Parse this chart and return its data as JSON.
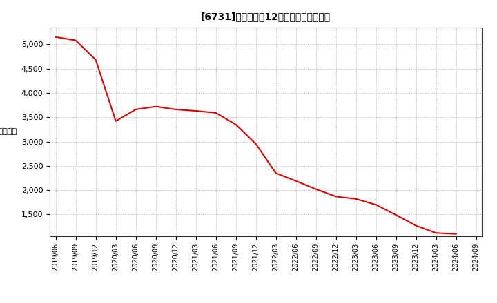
{
  "title": "[6731]　売上高の12か月移動合計の推移",
  "line_color": "#dd0000",
  "bg_color": "#ffffff",
  "plot_bg_color": "#ffffff",
  "grid_color": "#aaaaaa",
  "dates": [
    "2019/06",
    "2019/09",
    "2019/12",
    "2020/03",
    "2020/06",
    "2020/09",
    "2020/12",
    "2021/03",
    "2021/06",
    "2021/09",
    "2021/12",
    "2022/03",
    "2022/06",
    "2022/09",
    "2022/12",
    "2023/03",
    "2023/06",
    "2023/09",
    "2023/12",
    "2024/03",
    "2024/06",
    "2024/09"
  ],
  "values": [
    5150,
    5080,
    4680,
    3420,
    3660,
    3720,
    3660,
    3630,
    3590,
    3350,
    2950,
    2350,
    2190,
    2020,
    1870,
    1820,
    1700,
    1490,
    1270,
    1120,
    1100,
    null
  ],
  "yticks": [
    1500,
    2000,
    2500,
    3000,
    3500,
    4000,
    4500,
    5000
  ],
  "ylim": [
    1050,
    5350
  ],
  "xtick_labels": [
    "2019/06",
    "2019/09",
    "2019/12",
    "2020/03",
    "2020/06",
    "2020/09",
    "2020/12",
    "2021/03",
    "2021/06",
    "2021/09",
    "2021/12",
    "2022/03",
    "2022/06",
    "2022/09",
    "2022/12",
    "2023/03",
    "2023/06",
    "2023/09",
    "2023/12",
    "2024/03",
    "2024/06",
    "2024/09"
  ]
}
